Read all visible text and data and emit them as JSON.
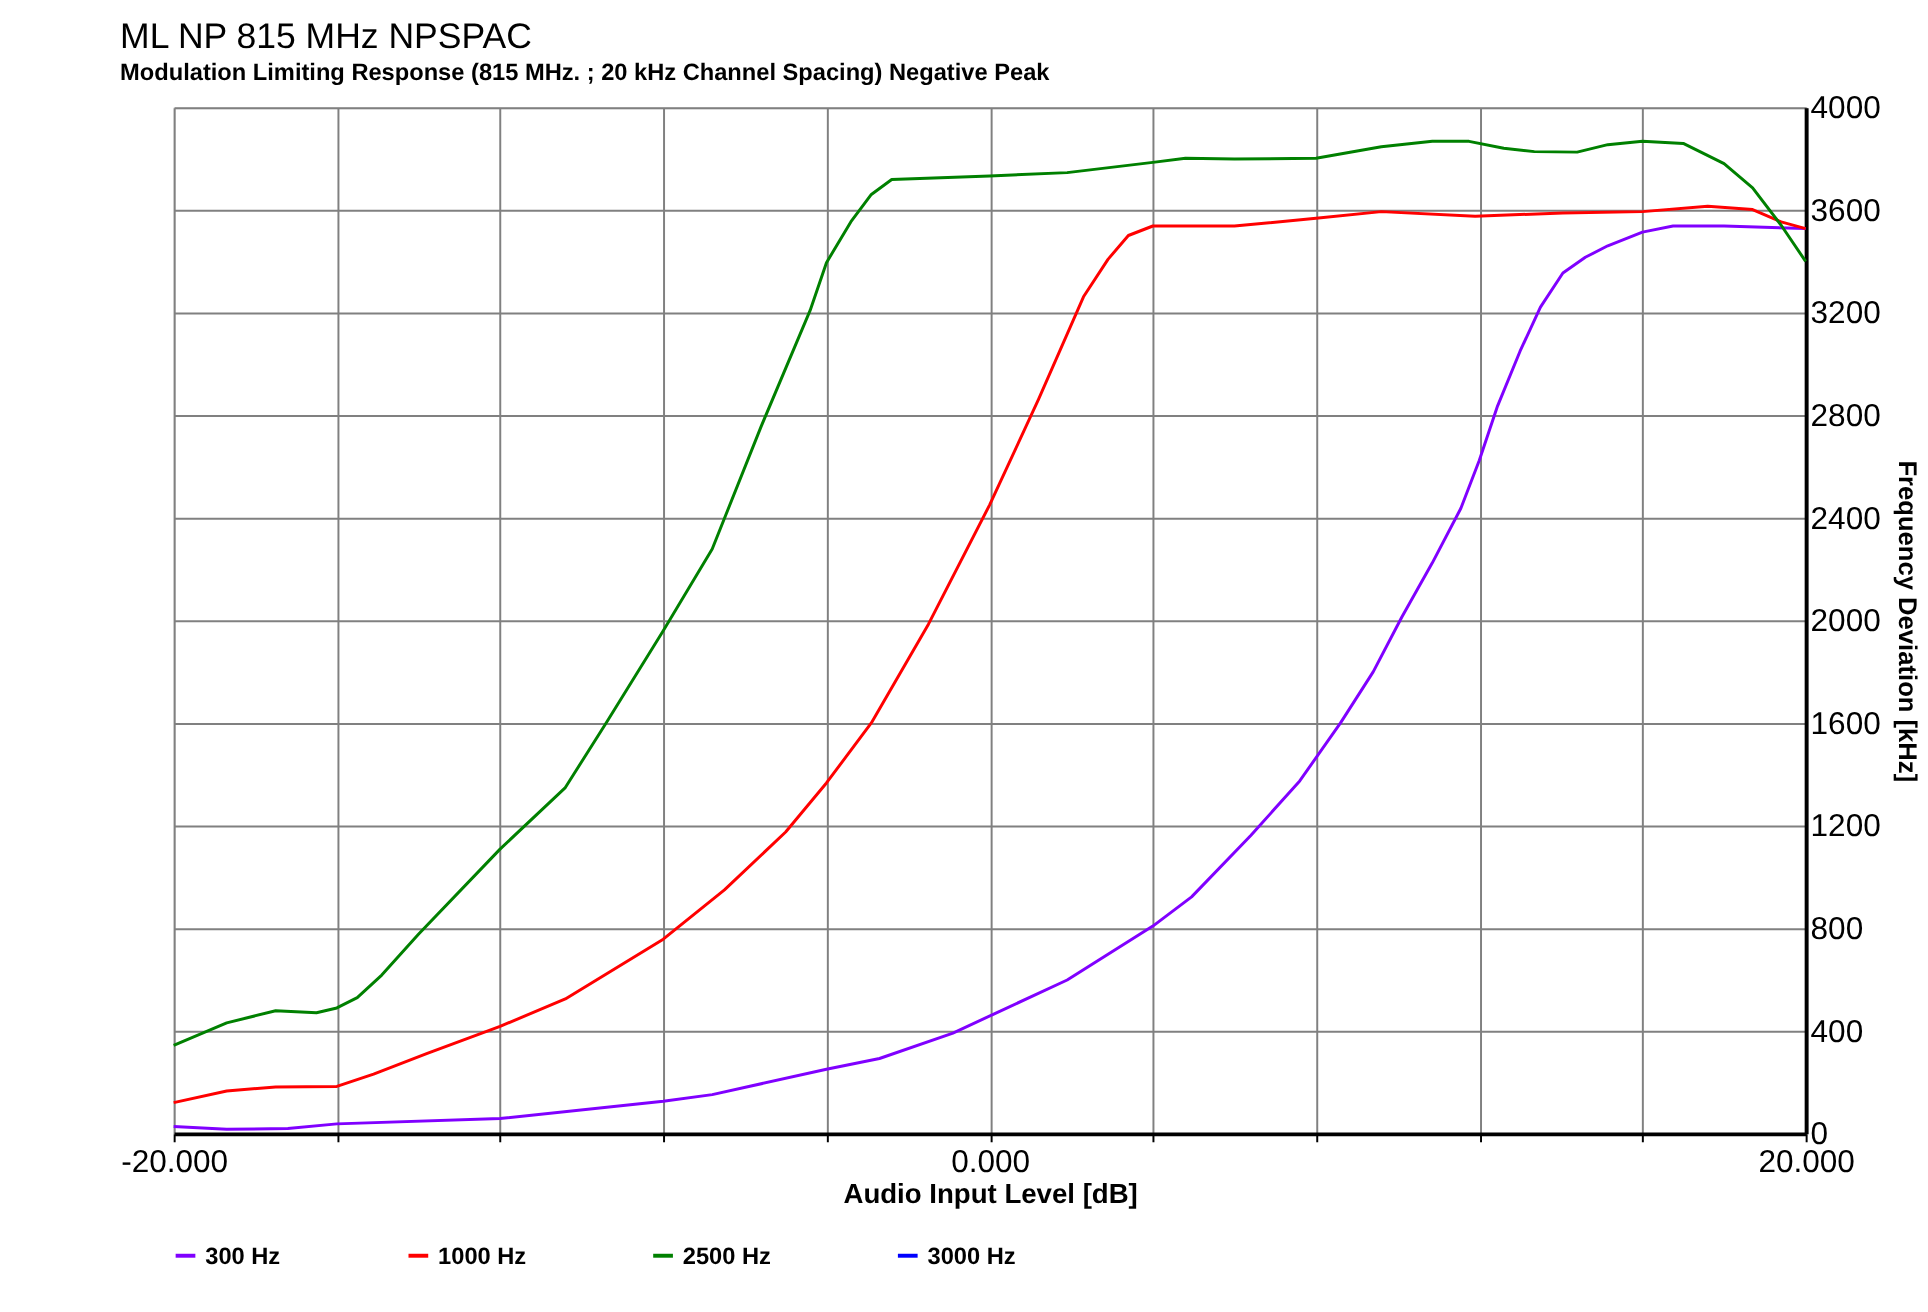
{
  "chart_data": {
    "type": "line",
    "title": "ML NP 815 MHz NPSPAC",
    "subtitle": "Modulation Limiting Response (815 MHz. ; 20 kHz Channel Spacing) Negative Peak",
    "xlabel": "Audio Input Level [dB]",
    "ylabel": "Frequency Deviation [kHz]",
    "xlim": [
      -20,
      20
    ],
    "xticks": [
      {
        "value": -20,
        "label": "-20.000"
      },
      {
        "value": -16,
        "label": null
      },
      {
        "value": -12,
        "label": null
      },
      {
        "value": -8,
        "label": null
      },
      {
        "value": -4,
        "label": null
      },
      {
        "value": 0,
        "label": "0.000"
      },
      {
        "value": 4,
        "label": null
      },
      {
        "value": 8,
        "label": null
      },
      {
        "value": 12,
        "label": null
      },
      {
        "value": 16,
        "label": null
      },
      {
        "value": 20,
        "label": "20.000"
      }
    ],
    "ylim": [
      0,
      4000
    ],
    "yticks": [
      0,
      400,
      800,
      1200,
      1600,
      2000,
      2400,
      2800,
      3200,
      3600,
      4000
    ],
    "grid": true,
    "legend": "bottom",
    "marker": "none",
    "line_style": "solid",
    "series": [
      {
        "name": "300 Hz",
        "color": "#8000ff",
        "x": [
          -20,
          -18.7,
          -17.2,
          -16,
          -12,
          -8,
          -6.8,
          -4,
          -2.7,
          -0.9,
          0.1,
          1.9,
          4,
          4.95,
          6.4,
          7.6,
          8.6,
          9.4,
          10.1,
          10.85,
          11.55,
          12.0,
          12.45,
          13.0,
          13.5,
          14.05,
          14.6,
          15.15,
          16,
          16.75,
          18,
          20
        ],
        "values": [
          27,
          16,
          19,
          37,
          58,
          125,
          151,
          250,
          292,
          391,
          465,
          598,
          808,
          922,
          1161,
          1374,
          1600,
          1799,
          2012,
          2224,
          2437,
          2623,
          2836,
          3049,
          3221,
          3354,
          3415,
          3460,
          3513,
          3537,
          3537,
          3527
        ]
      },
      {
        "name": "1000 Hz",
        "color": "#ff0000",
        "x": [
          -20,
          -18.7,
          -17.5,
          -16,
          -15.1,
          -13.8,
          -12,
          -10.4,
          -8,
          -6.5,
          -5,
          -4,
          -2.9,
          -1.5,
          0,
          1.2,
          2.3,
          2.9,
          3.4,
          4,
          6,
          8,
          9.6,
          11.9,
          14.05,
          16,
          17.6,
          18.7,
          19.4,
          20
        ],
        "values": [
          120,
          165,
          181,
          183,
          231,
          311,
          417,
          524,
          757,
          949,
          1175,
          1366,
          1600,
          1985,
          2450,
          2862,
          3261,
          3407,
          3500,
          3537,
          3537,
          3567,
          3593,
          3575,
          3588,
          3593,
          3614,
          3601,
          3553,
          3527
        ]
      },
      {
        "name": "2500 Hz",
        "color": "#008000",
        "x": [
          -20,
          -18.7,
          -17.5,
          -16.5,
          -16,
          -15.5,
          -14.9,
          -14,
          -12,
          -10.4,
          -9.4,
          -8,
          -6.8,
          -5.6,
          -4.4,
          -4,
          -3.4,
          -2.9,
          -2.4,
          0,
          1.9,
          4,
          4.8,
          6,
          8,
          9.6,
          10.85,
          11.75,
          12.6,
          13.35,
          14.4,
          15.15,
          16,
          17,
          18,
          18.7,
          19.4,
          20
        ],
        "values": [
          343,
          431,
          478,
          470,
          489,
          529,
          617,
          776,
          1108,
          1348,
          1600,
          1959,
          2278,
          2756,
          3208,
          3394,
          3554,
          3660,
          3718,
          3732,
          3745,
          3785,
          3801,
          3798,
          3801,
          3846,
          3867,
          3867,
          3840,
          3827,
          3825,
          3854,
          3867,
          3859,
          3780,
          3686,
          3540,
          3399
        ]
      },
      {
        "name": "3000 Hz",
        "color": "#0000ff"
      }
    ]
  }
}
